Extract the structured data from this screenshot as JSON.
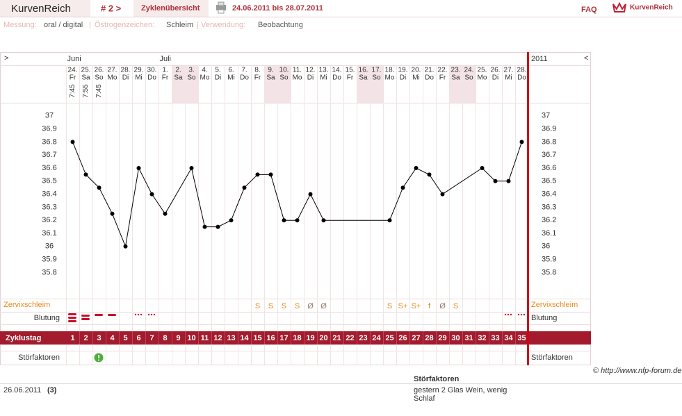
{
  "header": {
    "app_name": "KurvenReich",
    "cycle": "# 2 >",
    "tab": "Zyklenübersicht",
    "date_range": "24.06.2011 bis 28.07.2011",
    "faq": "FAQ",
    "logo": "KurvenReich"
  },
  "settings": {
    "separator": "|",
    "items": [
      {
        "label": "Messung:",
        "value": "oral / digital"
      },
      {
        "label": "Östrogenzeichen:",
        "value": "Schleim"
      },
      {
        "label": "Verwendung:",
        "value": "Beobachtung"
      }
    ]
  },
  "chart_data": {
    "type": "line",
    "nav_next": ">",
    "nav_prev": "<",
    "year": "2011",
    "month_labels": [
      "Juni",
      null,
      null,
      null,
      null,
      null,
      null,
      "Juli",
      null,
      null,
      null,
      null,
      null,
      null,
      null,
      null,
      null,
      null,
      null,
      null,
      null,
      null,
      null,
      null,
      null,
      null,
      null,
      null,
      null,
      null,
      null,
      null,
      null,
      null,
      null
    ],
    "dates": [
      "24.",
      "25.",
      "26.",
      "27.",
      "28.",
      "29.",
      "30.",
      "1.",
      "2.",
      "3.",
      "4.",
      "5.",
      "6.",
      "7.",
      "8.",
      "9.",
      "10.",
      "11.",
      "12.",
      "13.",
      "14.",
      "15.",
      "16.",
      "17.",
      "18.",
      "19.",
      "20.",
      "21.",
      "22.",
      "23.",
      "24.",
      "25.",
      "26.",
      "27.",
      "28."
    ],
    "weekdays": [
      "Fr",
      "Sa",
      "So",
      "Mo",
      "Di",
      "Mi",
      "Do",
      "Fr",
      "Sa",
      "So",
      "Mo",
      "Di",
      "Mi",
      "Do",
      "Fr",
      "Sa",
      "So",
      "Mo",
      "Di",
      "Mi",
      "Do",
      "Fr",
      "Sa",
      "So",
      "Mo",
      "Di",
      "Mi",
      "Do",
      "Fr",
      "Sa",
      "So",
      "Mo",
      "Di",
      "Mi",
      "Do"
    ],
    "times": [
      "7:45",
      "7:55",
      "7:45",
      null,
      null,
      null,
      null,
      null,
      null,
      null,
      null,
      null,
      null,
      null,
      null,
      null,
      null,
      null,
      null,
      null,
      null,
      null,
      null,
      null,
      null,
      null,
      null,
      null,
      null,
      null,
      null,
      null,
      null,
      null,
      null
    ],
    "highlighted_days": [
      9,
      10,
      16,
      17,
      23,
      24,
      30,
      31
    ],
    "x": [
      1,
      2,
      3,
      4,
      5,
      6,
      7,
      8,
      10,
      11,
      12,
      13,
      14,
      15,
      16,
      17,
      18,
      19,
      20,
      25,
      26,
      27,
      28,
      29,
      32,
      33,
      34,
      35
    ],
    "values": [
      36.8,
      36.55,
      36.45,
      36.25,
      36.0,
      36.6,
      36.4,
      36.25,
      36.6,
      36.15,
      36.15,
      36.2,
      36.45,
      36.55,
      36.55,
      36.2,
      36.2,
      36.4,
      36.2,
      36.2,
      36.45,
      36.6,
      36.55,
      36.4,
      36.6,
      36.5,
      36.5,
      36.8
    ],
    "color": "#000000",
    "xlim": [
      0.5,
      35.5
    ],
    "ylim": [
      35.6,
      37.1
    ],
    "yticks": [
      35.8,
      35.9,
      36,
      36.1,
      36.2,
      36.3,
      36.4,
      36.5,
      36.6,
      36.7,
      36.8,
      36.9,
      37
    ],
    "mucus": {
      "label": "Zervixschleim",
      "values": [
        null,
        null,
        null,
        null,
        null,
        null,
        null,
        null,
        null,
        null,
        null,
        null,
        null,
        null,
        "S",
        "S",
        "S",
        "S",
        "Ø",
        "Ø",
        null,
        null,
        null,
        null,
        "S",
        "S+",
        "S+",
        "f",
        "Ø",
        "S",
        null,
        null,
        null,
        null,
        null
      ],
      "colors": {
        "S": "#e8891a",
        "S+": "#e8891a",
        "f": "#e8891a",
        "Ø": "#9a7b6a"
      }
    },
    "bleeding_label": "Blutung",
    "cycle_day_label": "Zyklustag",
    "cycle_days": [
      1,
      2,
      3,
      4,
      5,
      6,
      7,
      8,
      9,
      10,
      11,
      12,
      13,
      14,
      15,
      16,
      17,
      18,
      19,
      20,
      21,
      22,
      23,
      24,
      25,
      26,
      27,
      28,
      29,
      30,
      31,
      32,
      33,
      34,
      35
    ],
    "disturbance_label": "Störfaktoren"
  },
  "footer": {
    "copyright": "© http://www.nfp-forum.de",
    "date": "26.06.2011",
    "day": "(3)",
    "title": "Störfaktoren",
    "note": "gestern 2 Glas Wein, wenig Schlaf"
  }
}
